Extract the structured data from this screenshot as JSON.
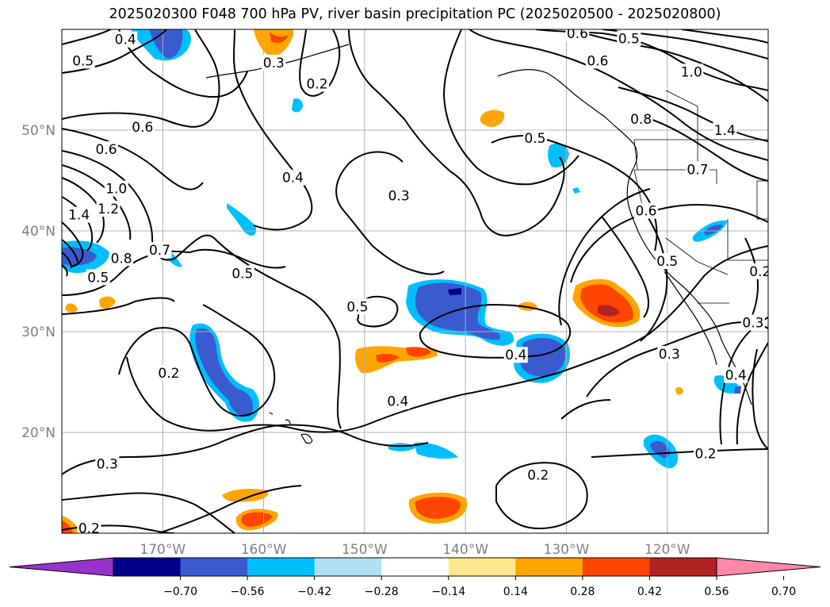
{
  "title": "2025020300 F048 700 hPa PV, river basin precipitation PC (2025020500 - 2025020800)",
  "map": {
    "region": "North-East Pacific and western North America",
    "lon_range": [
      -180,
      -110
    ],
    "lat_range": [
      10,
      60
    ],
    "gridlines": true,
    "lon_ticks": [
      {
        "lon": -170,
        "label": "170°W"
      },
      {
        "lon": -160,
        "label": "160°W"
      },
      {
        "lon": -150,
        "label": "150°W"
      },
      {
        "lon": -140,
        "label": "140°W"
      },
      {
        "lon": -130,
        "label": "130°W"
      },
      {
        "lon": -120,
        "label": "120°W"
      }
    ],
    "lat_ticks": [
      {
        "lat": 50,
        "label": "50°N"
      },
      {
        "lat": 40,
        "label": "40°N"
      },
      {
        "lat": 30,
        "label": "30°N"
      },
      {
        "lat": 20,
        "label": "20°N"
      }
    ],
    "tick_label_color": "#808080",
    "contour_color": "#000000",
    "contour_labels": [
      {
        "text": "0.4",
        "lon": -173.7,
        "lat": 59.0
      },
      {
        "text": "0.5",
        "lon": -177.9,
        "lat": 56.9
      },
      {
        "text": "0.6",
        "lon": -172.0,
        "lat": 50.3
      },
      {
        "text": "0.6",
        "lon": -175.6,
        "lat": 48.1
      },
      {
        "text": "1.0",
        "lon": -174.6,
        "lat": 44.2
      },
      {
        "text": "1.2",
        "lon": -175.4,
        "lat": 42.2
      },
      {
        "text": "1.4",
        "lon": -178.3,
        "lat": 41.6
      },
      {
        "text": "0.8",
        "lon": -174.1,
        "lat": 37.3
      },
      {
        "text": "0.7",
        "lon": -170.3,
        "lat": 38.1
      },
      {
        "text": "0.5",
        "lon": -176.4,
        "lat": 35.4
      },
      {
        "text": "0.3",
        "lon": -159.0,
        "lat": 56.7
      },
      {
        "text": "0.2",
        "lon": -154.7,
        "lat": 54.6
      },
      {
        "text": "0.4",
        "lon": -157.1,
        "lat": 45.3
      },
      {
        "text": "0.3",
        "lon": -146.6,
        "lat": 43.5
      },
      {
        "text": "0.5",
        "lon": -162.1,
        "lat": 35.8
      },
      {
        "text": "0.5",
        "lon": -150.7,
        "lat": 32.5
      },
      {
        "text": "0.2",
        "lon": -169.4,
        "lat": 25.9
      },
      {
        "text": "0.4",
        "lon": -146.7,
        "lat": 23.1
      },
      {
        "text": "0.4",
        "lon": -135.0,
        "lat": 27.7
      },
      {
        "text": "0.3",
        "lon": -175.5,
        "lat": 16.9
      },
      {
        "text": "0.2",
        "lon": -177.3,
        "lat": 10.5
      },
      {
        "text": "0.2",
        "lon": -132.8,
        "lat": 15.8
      },
      {
        "text": "0.2",
        "lon": -116.2,
        "lat": 17.9
      },
      {
        "text": "0.6",
        "lon": -128.9,
        "lat": 59.6
      },
      {
        "text": "0.5",
        "lon": -123.8,
        "lat": 59.1
      },
      {
        "text": "0.6",
        "lon": -126.9,
        "lat": 56.9
      },
      {
        "text": "1.0",
        "lon": -117.6,
        "lat": 55.8
      },
      {
        "text": "0.8",
        "lon": -122.6,
        "lat": 51.1
      },
      {
        "text": "0.5",
        "lon": -133.1,
        "lat": 49.2
      },
      {
        "text": "1.4",
        "lon": -114.3,
        "lat": 50.0
      },
      {
        "text": "0.7",
        "lon": -117.0,
        "lat": 46.1
      },
      {
        "text": "0.6",
        "lon": -122.1,
        "lat": 42.0
      },
      {
        "text": "0.5",
        "lon": -120.0,
        "lat": 37.0
      },
      {
        "text": "0.2",
        "lon": -110.8,
        "lat": 36.0
      },
      {
        "text": "0.3",
        "lon": -111.5,
        "lat": 30.9
      },
      {
        "text": "0.3",
        "lon": -119.8,
        "lat": 27.8
      },
      {
        "text": "0.4",
        "lon": -113.2,
        "lat": 25.7
      }
    ]
  },
  "colorbar": {
    "ticks": [
      "−0.70",
      "−0.56",
      "−0.42",
      "−0.28",
      "−0.14",
      "0.14",
      "0.28",
      "0.42",
      "0.56",
      "0.70"
    ],
    "colors": [
      "#9932cc",
      "#00008b",
      "#3a5bcf",
      "#00bfff",
      "#ade1f5",
      "#ffffff",
      "#ffe88c",
      "#ffa500",
      "#ff4500",
      "#b22222",
      "#ff88aa"
    ]
  }
}
